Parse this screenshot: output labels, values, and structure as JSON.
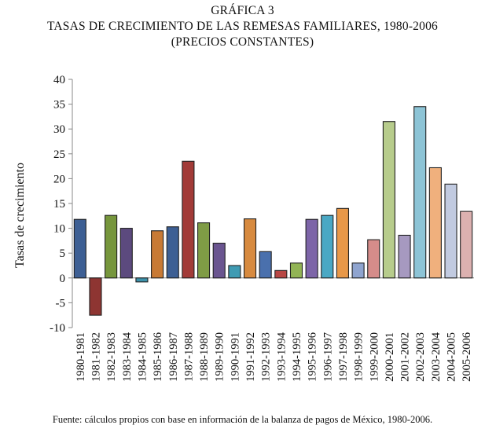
{
  "figure": {
    "label": "GRÁFICA 3",
    "title_line1": "TASAS DE CRECIMIENTO DE LAS REMESAS FAMILIARES, 1980-2006",
    "title_line2": "(PRECIOS CONSTANTES)",
    "source": "Fuente: cálculos propios con base en información de la balanza de pagos de México, 1980-2006."
  },
  "chart_data": {
    "type": "bar",
    "title": "TASAS DE CRECIMIENTO DE LAS REMESAS FAMILIARES, 1980-2006 (PRECIOS CONSTANTES)",
    "xlabel": "",
    "ylabel": "Tasas de crecimiento",
    "ylim": [
      -10,
      40
    ],
    "yticks": [
      -10,
      -5,
      0,
      5,
      10,
      15,
      20,
      25,
      30,
      35,
      40
    ],
    "grid": false,
    "legend": "none",
    "categories": [
      "1980-1981",
      "1981-1982",
      "1982-1983",
      "1983-1984",
      "1984-1985",
      "1985-1986",
      "1986-1987",
      "1987-1988",
      "1988-1989",
      "1989-1990",
      "1990-1991",
      "1991-1992",
      "1992-1993",
      "1993-1994",
      "1994-1995",
      "1995-1996",
      "1996-1997",
      "1997-1998",
      "1998-1999",
      "1999-2000",
      "2000-2001",
      "2001-2002",
      "2002-2003",
      "2003-2004",
      "2004-2005",
      "2005-2006"
    ],
    "values": [
      11.8,
      -7.5,
      12.6,
      10.0,
      -0.8,
      9.5,
      10.3,
      23.5,
      11.1,
      7.0,
      2.5,
      11.9,
      5.3,
      1.5,
      3.0,
      11.8,
      12.6,
      14.0,
      3.0,
      7.7,
      31.5,
      8.6,
      34.5,
      22.2,
      18.9,
      13.4
    ],
    "colors": [
      "#3d5f94",
      "#8e3532",
      "#76963c",
      "#5c4a7e",
      "#3d92ab",
      "#c87a35",
      "#3d5f94",
      "#a23b38",
      "#7f9c45",
      "#6a5590",
      "#3f9bb3",
      "#d78a3f",
      "#4a70ad",
      "#b84744",
      "#92b455",
      "#7d65a8",
      "#4aa8c4",
      "#e89848",
      "#8fa4cf",
      "#d58c8a",
      "#b7cc8c",
      "#a699c0",
      "#8dc4d6",
      "#f0b07d",
      "#c1cae0",
      "#dcb1b0"
    ]
  }
}
